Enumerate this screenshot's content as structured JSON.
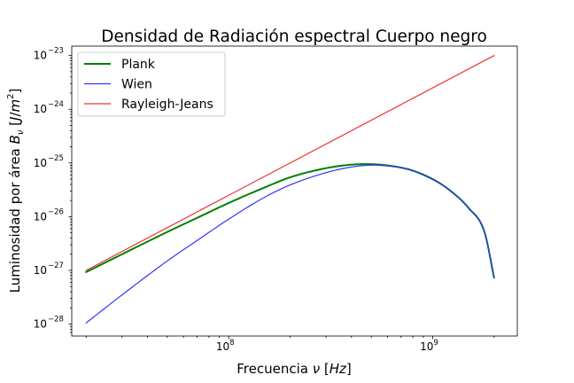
{
  "chart_data": {
    "type": "line",
    "title": "Densidad de Radiación espectral Cuerpo negro",
    "xlabel": "Frecuencia ν [Hz]",
    "ylabel": "Luminosidad por área B_ν [J/m²]",
    "x_scale": "log",
    "y_scale": "log",
    "xlim": [
      17000000,
      2600000000
    ],
    "ylim": [
      6e-29,
      1.5e-23
    ],
    "x_major_ticks": [
      {
        "value": 100000000,
        "base": "10",
        "exp": "8"
      },
      {
        "value": 1000000000,
        "base": "10",
        "exp": "9"
      }
    ],
    "y_major_ticks": [
      {
        "value": 1e-28,
        "base": "10",
        "exp": "−28"
      },
      {
        "value": 1e-27,
        "base": "10",
        "exp": "−27"
      },
      {
        "value": 1e-26,
        "base": "10",
        "exp": "−26"
      },
      {
        "value": 1e-25,
        "base": "10",
        "exp": "−25"
      },
      {
        "value": 1e-24,
        "base": "10",
        "exp": "−24"
      },
      {
        "value": 1e-23,
        "base": "10",
        "exp": "−23"
      }
    ],
    "grid": false,
    "legend_position": "top-left",
    "series": [
      {
        "name": "Plank",
        "color": "#008000",
        "style": "thick",
        "x": [
          20000000,
          30000000,
          50000000,
          70000000,
          100000000,
          150000000,
          200000000,
          300000000,
          400000000,
          500000000,
          600000000,
          700000000,
          800000000,
          1000000000,
          1200000000,
          1500000000,
          1800000000,
          2000000000
        ],
        "y": [
          9.3e-28,
          2e-27,
          5.2e-27,
          9.5e-27,
          1.8e-26,
          3.5e-26,
          5.4e-26,
          8e-26,
          9.3e-26,
          9.5e-26,
          9e-26,
          8.2e-26,
          7.2e-26,
          5e-26,
          3.2e-26,
          1.45e-26,
          5e-27,
          7.3e-28
        ]
      },
      {
        "name": "Wien",
        "color": "#3333ff",
        "style": "thin",
        "x": [
          20000000,
          30000000,
          50000000,
          70000000,
          100000000,
          150000000,
          200000000,
          300000000,
          400000000,
          500000000,
          600000000,
          700000000,
          800000000,
          1000000000,
          1200000000,
          1500000000,
          1800000000,
          2000000000
        ],
        "y": [
          1.05e-28,
          3.5e-28,
          1.5e-27,
          3.6e-27,
          9e-27,
          2.3e-26,
          3.9e-26,
          6.6e-26,
          8.4e-26,
          9.1e-26,
          8.8e-26,
          8.1e-26,
          7.1e-26,
          4.9e-26,
          3.2e-26,
          1.45e-26,
          5e-27,
          7.3e-28
        ]
      },
      {
        "name": "Rayleigh-Jeans",
        "color": "#ee3333",
        "style": "thin",
        "x": [
          20000000,
          2000000000
        ],
        "y": [
          1e-27,
          1e-23
        ]
      }
    ]
  }
}
